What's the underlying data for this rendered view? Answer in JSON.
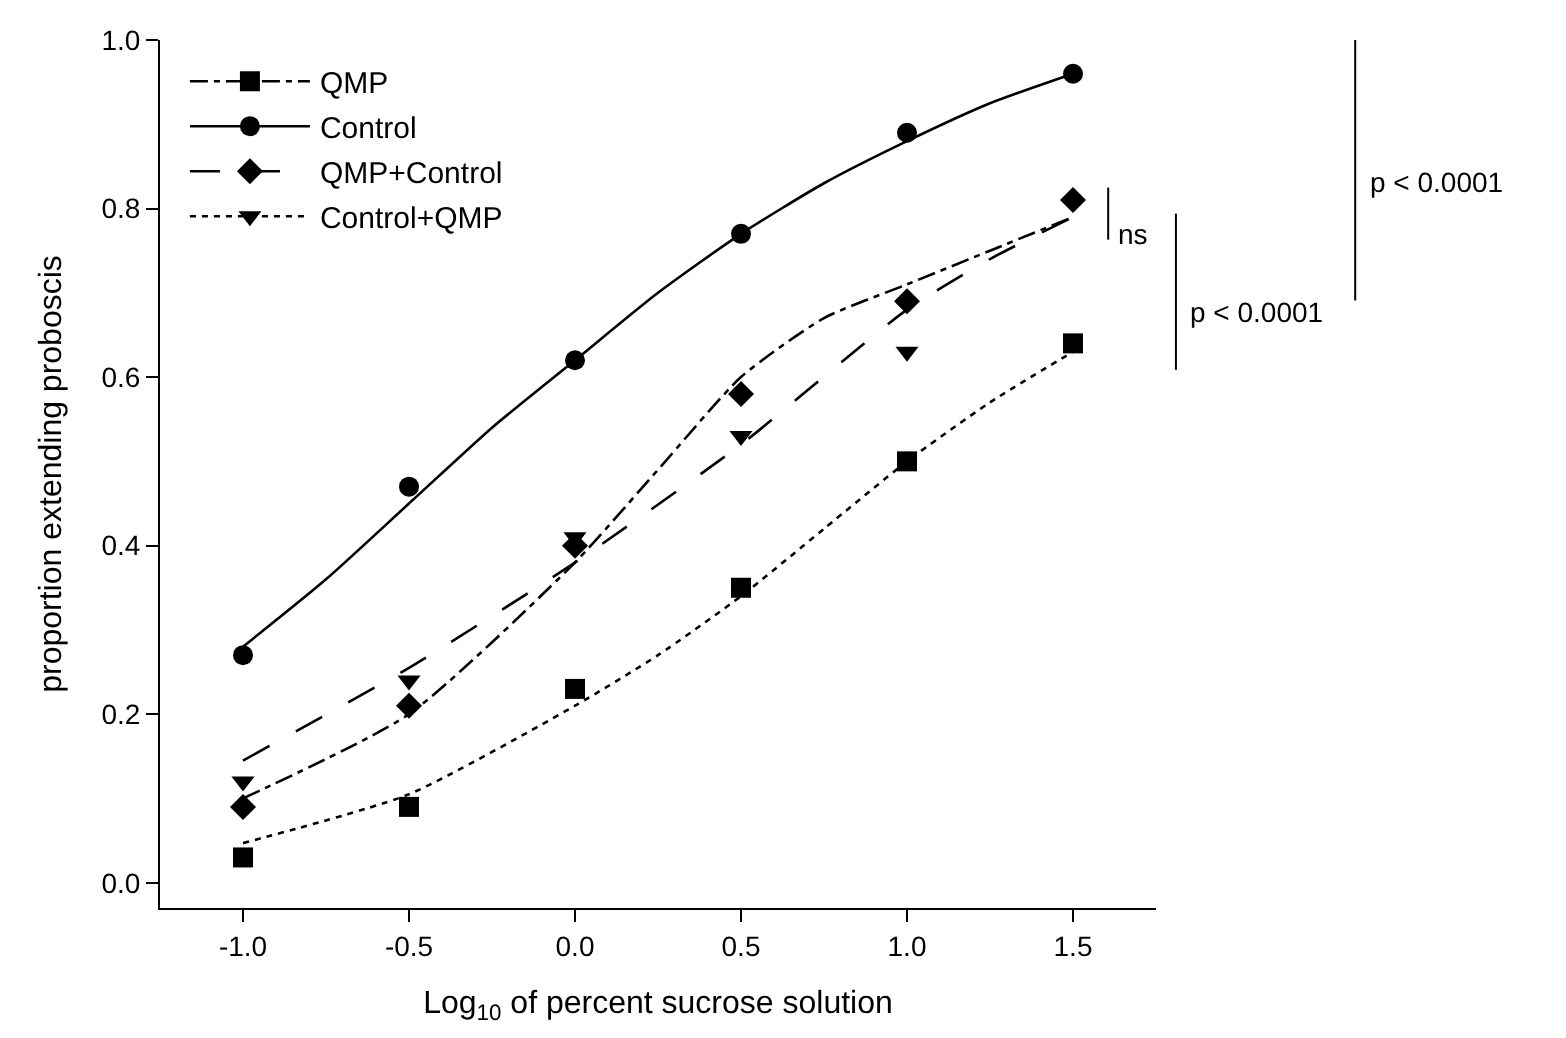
{
  "chart_data": {
    "type": "scatter",
    "xlabel": "Log$_{10}$ of percent sucrose solution",
    "ylabel": "proportion extending proboscis",
    "x": [
      -1.0,
      -0.5,
      0.0,
      0.5,
      1.0,
      1.5
    ],
    "series": [
      {
        "name": "QMP",
        "color": "#000000",
        "marker": "square",
        "line_style": "dashdot",
        "values": [
          0.03,
          0.09,
          0.23,
          0.35,
          0.5,
          0.64
        ]
      },
      {
        "name": "Control",
        "color": "#000000",
        "marker": "circle",
        "line_style": "solid",
        "values": [
          0.27,
          0.47,
          0.62,
          0.77,
          0.89,
          0.96
        ]
      },
      {
        "name": "QMP+Control",
        "color": "#000000",
        "marker": "diamond",
        "line_style": "dashed",
        "values": [
          0.09,
          0.21,
          0.4,
          0.58,
          0.69,
          0.81
        ]
      },
      {
        "name": "Control+QMP",
        "color": "#000000",
        "marker": "triangle",
        "line_style": "dotted",
        "values": [
          0.12,
          0.24,
          0.41,
          0.53,
          0.63,
          null
        ]
      },
      {
        "type": "line",
        "color": "#000000",
        "line_style": "solid",
        "x": [
          -1.0,
          -0.75,
          -0.5,
          -0.25,
          0.0,
          0.25,
          0.5,
          0.75,
          1.0,
          1.25,
          1.5
        ],
        "values": [
          0.28,
          0.36,
          0.45,
          0.54,
          0.62,
          0.7,
          0.77,
          0.83,
          0.88,
          0.925,
          0.96
        ]
      },
      {
        "type": "line",
        "color": "#000000",
        "line_style": "dashdot",
        "x": [
          -1.0,
          -0.5,
          0.0,
          0.25,
          0.5,
          0.75,
          1.0,
          1.25,
          1.5
        ],
        "values": [
          0.1,
          0.2,
          0.38,
          0.49,
          0.6,
          0.67,
          0.71,
          0.75,
          0.79
        ]
      },
      {
        "type": "line",
        "color": "#000000",
        "line_style": "dashed",
        "x": [
          -1.0,
          -0.5,
          0.0,
          0.5,
          1.0,
          1.25,
          1.5
        ],
        "values": [
          0.145,
          0.255,
          0.38,
          0.52,
          0.68,
          0.74,
          0.79
        ]
      },
      {
        "type": "line",
        "color": "#000000",
        "line_style": "dotted",
        "x": [
          -1.0,
          -0.5,
          0.0,
          0.25,
          0.5,
          0.75,
          1.0,
          1.25,
          1.5
        ],
        "values": [
          0.047,
          0.105,
          0.21,
          0.27,
          0.34,
          0.42,
          0.5,
          0.57,
          0.63
        ]
      }
    ],
    "annotations": [
      "ns",
      "p < 0.0001",
      "p < 0.0001"
    ],
    "xlim": [
      -1.25,
      1.75
    ],
    "xticks": [
      {
        "value": -1.0,
        "label": "-1.0"
      },
      {
        "value": -0.5,
        "label": "-0.5"
      },
      {
        "value": 0.0,
        "label": "0.0"
      },
      {
        "value": 0.5,
        "label": "0.5"
      },
      {
        "value": 1.0,
        "label": "1.0"
      },
      {
        "value": 1.5,
        "label": "1.5"
      }
    ],
    "ylim": [
      -0.03,
      1.0
    ],
    "yticks": [
      {
        "value": 0.0,
        "label": "0.0"
      },
      {
        "value": 0.2,
        "label": "0.2"
      },
      {
        "value": 0.4,
        "label": "0.4"
      },
      {
        "value": 0.6,
        "label": "0.6"
      },
      {
        "value": 0.8,
        "label": "0.8"
      },
      {
        "value": 1.0,
        "label": "1.0"
      }
    ],
    "legend": "top left"
  }
}
